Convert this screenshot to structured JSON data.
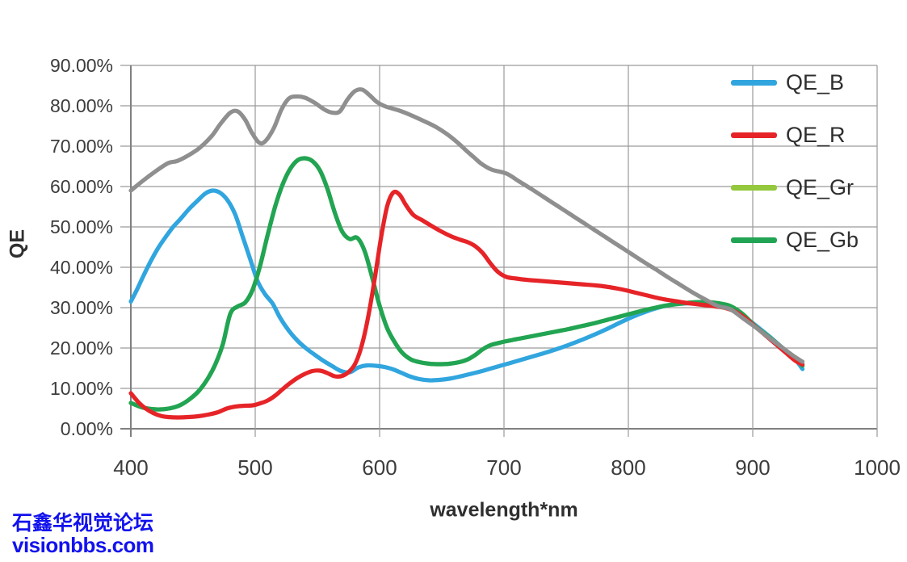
{
  "watermark": {
    "line1": "石鑫华视觉论坛",
    "line2": "visionbbs.com",
    "color": "#1212ee"
  },
  "legend": {
    "entries": [
      {
        "label": "QE_B",
        "color": "#31a5de"
      },
      {
        "label": "QE_R",
        "color": "#e62428"
      },
      {
        "label": "QE_Gr",
        "color": "#94c83d"
      },
      {
        "label": "QE_Gb",
        "color": "#21a453"
      }
    ]
  },
  "colors": {
    "gridline": "#9a9a9a",
    "axis": "#808080",
    "tick_text": "#3c3c3c",
    "unlabeled_gray_series": "#8f8f8f",
    "watermark_blue": "#1212ee"
  },
  "chart_data": {
    "type": "line",
    "title": "",
    "xlabel": "wavelength*nm",
    "ylabel": "QE",
    "xlim": [
      400,
      1000
    ],
    "ylim": [
      0,
      90
    ],
    "grid": true,
    "legend_position": "inside-top-right",
    "x_ticks": [
      400,
      500,
      600,
      700,
      800,
      900,
      1000
    ],
    "x_tick_labels": [
      "400",
      "500",
      "600",
      "700",
      "800",
      "900",
      "1000"
    ],
    "y_ticks": [
      0,
      10,
      20,
      30,
      40,
      50,
      60,
      70,
      80,
      90
    ],
    "y_tick_labels": [
      "0.00%",
      "10.00%",
      "20.00%",
      "30.00%",
      "40.00%",
      "50.00%",
      "60.00%",
      "70.00%",
      "80.00%",
      "90.00%"
    ],
    "units": "percent QE vs wavelength in nm",
    "series": [
      {
        "name": "",
        "id": "unlabeled-gray",
        "in_legend": false,
        "color": "#8f8f8f",
        "x": [
          400,
          410,
          420,
          430,
          437,
          445,
          455,
          465,
          472,
          480,
          486,
          492,
          497,
          503,
          508,
          515,
          521,
          527,
          533,
          540,
          548,
          556,
          562,
          568,
          574,
          580,
          586,
          592,
          598,
          605,
          615,
          625,
          635,
          645,
          655,
          663,
          670,
          676,
          682,
          690,
          702,
          712,
          722,
          732,
          742,
          752,
          762,
          772,
          782,
          792,
          802,
          812,
          822,
          832,
          842,
          852,
          862,
          872,
          882,
          892,
          902,
          912,
          922,
          932,
          940
        ],
        "y": [
          59,
          61.5,
          63.8,
          65.8,
          66.3,
          67.5,
          69.5,
          72.5,
          75.5,
          78.3,
          78.6,
          76.5,
          73.5,
          70.9,
          71.2,
          74.5,
          79,
          81.8,
          82.3,
          82,
          80.7,
          79,
          78.3,
          78.6,
          81.5,
          83.6,
          84,
          82.6,
          80.9,
          79.8,
          78.9,
          77.7,
          76.3,
          74.8,
          72.8,
          70.8,
          68.8,
          67.2,
          65.6,
          64.2,
          63.2,
          61.3,
          59.4,
          57.4,
          55.4,
          53.4,
          51.4,
          49.4,
          47.4,
          45.4,
          43.4,
          41.4,
          39.5,
          37.5,
          35.6,
          33.7,
          32,
          30.4,
          29.6,
          27.4,
          25.2,
          22.8,
          20.5,
          18.2,
          16.6
        ]
      },
      {
        "name": "QE_B",
        "in_legend": true,
        "color": "#31a5de",
        "x": [
          400,
          405,
          410,
          416,
          422,
          428,
          434,
          440,
          447,
          453,
          460,
          466,
          472,
          478,
          484,
          490,
          496,
          502,
          508,
          514,
          520,
          527,
          534,
          541,
          548,
          555,
          562,
          569,
          576,
          583,
          590,
          597,
          604,
          611,
          618,
          625,
          632,
          640,
          648,
          656,
          664,
          672,
          680,
          688,
          696,
          704,
          714,
          724,
          734,
          744,
          754,
          764,
          774,
          784,
          794,
          804,
          814,
          824,
          834,
          844,
          854,
          864,
          874,
          884,
          894,
          904,
          914,
          924,
          934,
          940
        ],
        "y": [
          31.5,
          34.5,
          37.8,
          41.5,
          44.8,
          47.5,
          50,
          52,
          54.5,
          56.3,
          58.3,
          59,
          58.4,
          56.5,
          53,
          47.5,
          42,
          36.5,
          33.3,
          31,
          27.5,
          24.3,
          21.8,
          19.9,
          18.3,
          16.8,
          15.5,
          14.3,
          14,
          15.2,
          15.7,
          15.6,
          15.3,
          14.7,
          13.8,
          12.9,
          12.3,
          12,
          12.1,
          12.4,
          12.9,
          13.5,
          14.1,
          14.8,
          15.5,
          16.2,
          17.1,
          18,
          18.9,
          19.9,
          21,
          22.2,
          23.5,
          24.9,
          26.4,
          27.8,
          29,
          30,
          30.7,
          31,
          31.2,
          31.1,
          30.7,
          29.6,
          27.6,
          25.2,
          22.7,
          20,
          17.2,
          14.8
        ]
      },
      {
        "name": "QE_Gr",
        "in_legend": true,
        "color": "#94c83d",
        "note": "hidden behind QE_Gb",
        "x": [
          400,
          408,
          416,
          424,
          432,
          440,
          448,
          455,
          462,
          468,
          474,
          480,
          486,
          492,
          498,
          504,
          510,
          516,
          522,
          528,
          534,
          540,
          546,
          552,
          558,
          564,
          570,
          576,
          582,
          588,
          594,
          600,
          606,
          612,
          618,
          625,
          632,
          640,
          648,
          656,
          664,
          671,
          677,
          683,
          689,
          695,
          702,
          712,
          722,
          732,
          742,
          752,
          762,
          772,
          782,
          792,
          802,
          812,
          822,
          832,
          842,
          852,
          862,
          872,
          882,
          892,
          902,
          912,
          922,
          932,
          940
        ],
        "y": [
          6.4,
          5.4,
          4.9,
          4.8,
          5.1,
          5.9,
          7.5,
          9.5,
          12.5,
          16,
          21,
          28.5,
          30.3,
          31.3,
          34.5,
          40.5,
          48,
          55,
          60.5,
          64.3,
          66.5,
          67,
          66.3,
          64,
          59.5,
          53.5,
          48.8,
          47,
          47.3,
          44,
          37.5,
          30.5,
          25,
          21.5,
          18.9,
          17.2,
          16.5,
          16.1,
          16,
          16.1,
          16.5,
          17.2,
          18.3,
          19.7,
          20.7,
          21.2,
          21.7,
          22.3,
          22.9,
          23.5,
          24.1,
          24.7,
          25.4,
          26.1,
          26.9,
          27.7,
          28.5,
          29.3,
          30,
          30.6,
          31,
          31.3,
          31.4,
          31.1,
          30.4,
          28.4,
          25.4,
          23,
          20.5,
          18,
          15.6
        ]
      },
      {
        "name": "QE_Gb",
        "in_legend": true,
        "color": "#21a453",
        "x": [
          400,
          408,
          416,
          424,
          432,
          440,
          448,
          455,
          462,
          468,
          474,
          480,
          486,
          492,
          498,
          504,
          510,
          516,
          522,
          528,
          534,
          540,
          546,
          552,
          558,
          564,
          570,
          576,
          582,
          588,
          594,
          600,
          606,
          612,
          618,
          625,
          632,
          640,
          648,
          656,
          664,
          671,
          677,
          683,
          689,
          695,
          702,
          712,
          722,
          732,
          742,
          752,
          762,
          772,
          782,
          792,
          802,
          812,
          822,
          832,
          842,
          852,
          862,
          872,
          882,
          892,
          902,
          912,
          922,
          932,
          940
        ],
        "y": [
          6.4,
          5.4,
          4.9,
          4.8,
          5.1,
          5.9,
          7.5,
          9.5,
          12.5,
          16,
          21,
          28.5,
          30.3,
          31.3,
          34.5,
          40.5,
          48,
          55,
          60.5,
          64.3,
          66.5,
          67,
          66.3,
          64,
          59.5,
          53.5,
          48.8,
          47,
          47.3,
          44,
          37.5,
          30.5,
          25,
          21.5,
          18.9,
          17.2,
          16.5,
          16.1,
          16,
          16.1,
          16.5,
          17.2,
          18.3,
          19.7,
          20.7,
          21.2,
          21.7,
          22.3,
          22.9,
          23.5,
          24.1,
          24.7,
          25.4,
          26.1,
          26.9,
          27.7,
          28.5,
          29.3,
          30,
          30.6,
          31,
          31.3,
          31.4,
          31.1,
          30.4,
          28.4,
          25.4,
          23,
          20.5,
          18,
          15.6
        ]
      },
      {
        "name": "QE_R",
        "in_legend": true,
        "color": "#e62428",
        "x": [
          400,
          406,
          412,
          418,
          424,
          430,
          438,
          446,
          454,
          462,
          470,
          477,
          484,
          491,
          498,
          504,
          510,
          516,
          522,
          528,
          534,
          540,
          546,
          552,
          558,
          564,
          570,
          576,
          581,
          586,
          591,
          596,
          601,
          606,
          611,
          616,
          621,
          627,
          634,
          642,
          650,
          658,
          665,
          671,
          677,
          683,
          689,
          695,
          702,
          710,
          718,
          726,
          734,
          742,
          750,
          758,
          766,
          774,
          782,
          790,
          798,
          806,
          814,
          822,
          830,
          838,
          846,
          854,
          862,
          870,
          878,
          886,
          894,
          902,
          910,
          918,
          926,
          934,
          940
        ],
        "y": [
          8.8,
          6.6,
          5,
          3.9,
          3.2,
          2.9,
          2.8,
          2.9,
          3.1,
          3.5,
          4.1,
          5,
          5.5,
          5.7,
          5.8,
          6.3,
          7,
          8.2,
          9.8,
          11.3,
          12.6,
          13.6,
          14.3,
          14.4,
          13.8,
          13,
          13.1,
          14.3,
          16.5,
          21,
          28,
          37,
          47,
          55,
          58.5,
          58,
          55.5,
          53,
          51.7,
          50.2,
          48.8,
          47.6,
          46.8,
          46.2,
          45.2,
          43.5,
          41,
          38.9,
          37.6,
          37.2,
          36.9,
          36.7,
          36.5,
          36.3,
          36.1,
          35.9,
          35.7,
          35.5,
          35.2,
          34.8,
          34.3,
          33.7,
          33.1,
          32.5,
          32,
          31.6,
          31.2,
          30.9,
          30.6,
          30.3,
          29.9,
          29,
          27.4,
          25.3,
          23.2,
          21.1,
          19,
          16.9,
          15.9
        ]
      }
    ]
  }
}
